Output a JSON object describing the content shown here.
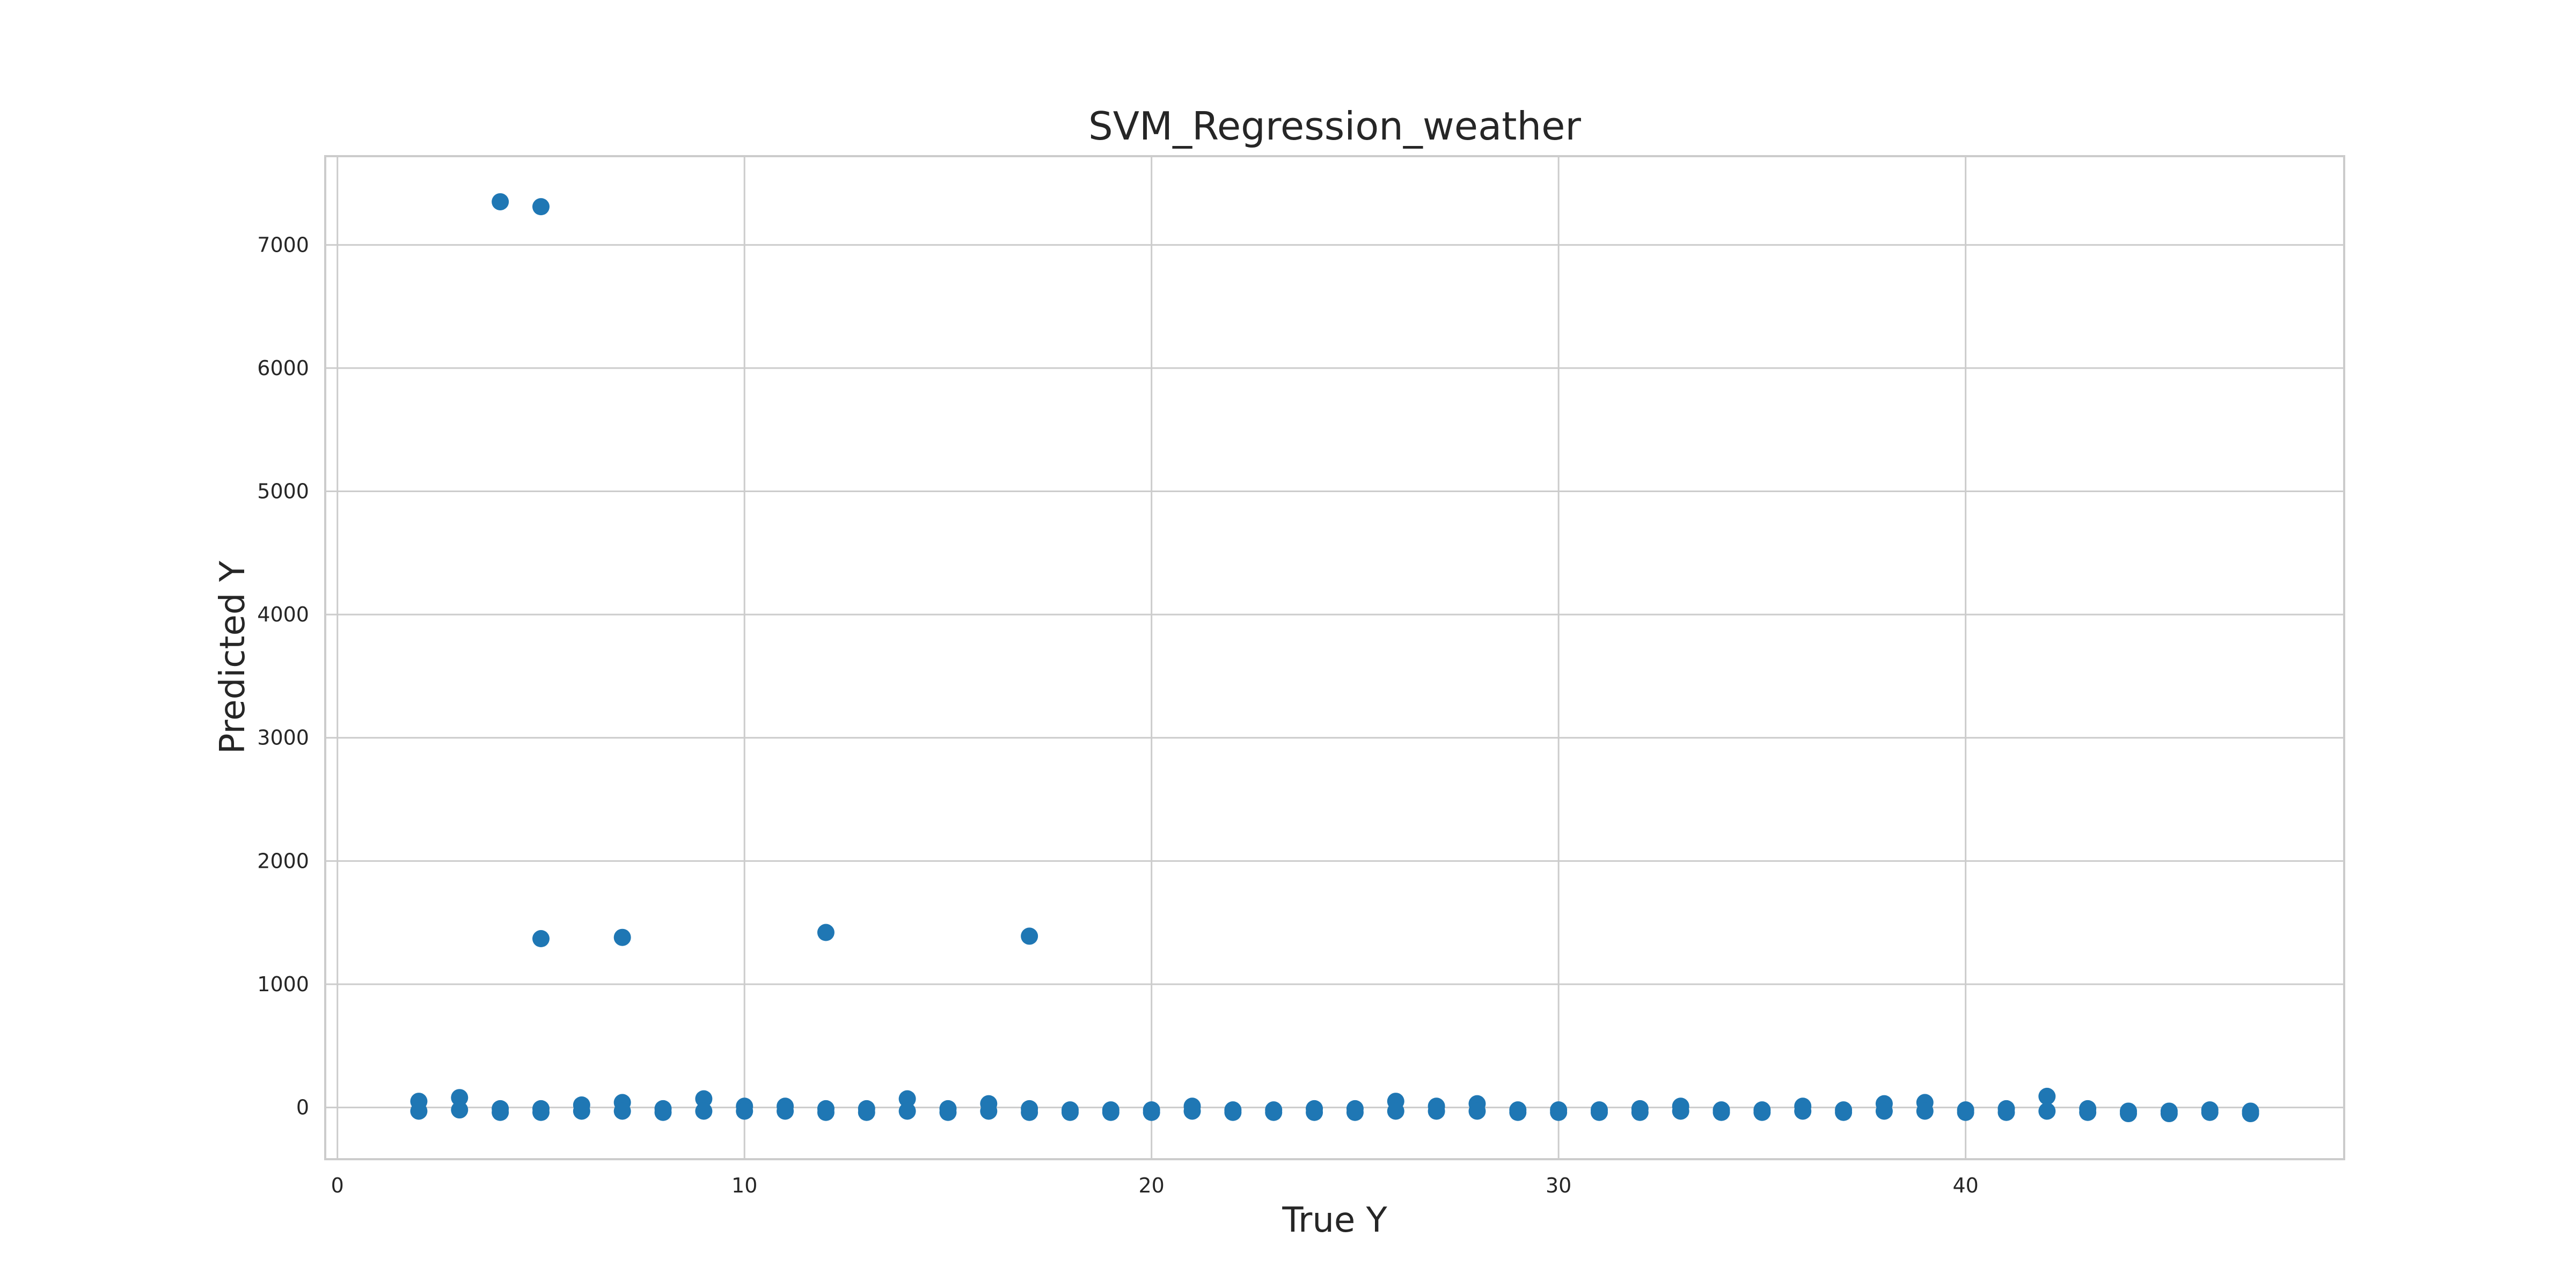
{
  "chart_data": {
    "type": "scatter",
    "title": "SVM_Regression_weather",
    "xlabel": "True Y",
    "ylabel": "Predicted Y",
    "xlim": [
      -0.3,
      49.3
    ],
    "ylim": [
      -420,
      7720
    ],
    "xticks": [
      0,
      10,
      20,
      30,
      40
    ],
    "yticks": [
      0,
      1000,
      2000,
      3000,
      4000,
      5000,
      6000,
      7000
    ],
    "grid": true,
    "legend": "none",
    "marker_color": "#1f77b4",
    "points": [
      {
        "x": 2,
        "y": 50
      },
      {
        "x": 2,
        "y": -30
      },
      {
        "x": 3,
        "y": 80
      },
      {
        "x": 3,
        "y": -20
      },
      {
        "x": 4,
        "y": 7350
      },
      {
        "x": 4,
        "y": -10
      },
      {
        "x": 4,
        "y": -40
      },
      {
        "x": 5,
        "y": 7310
      },
      {
        "x": 5,
        "y": 1370
      },
      {
        "x": 5,
        "y": -10
      },
      {
        "x": 5,
        "y": -40
      },
      {
        "x": 6,
        "y": 20
      },
      {
        "x": 6,
        "y": -30
      },
      {
        "x": 7,
        "y": 1380
      },
      {
        "x": 7,
        "y": 40
      },
      {
        "x": 7,
        "y": -30
      },
      {
        "x": 8,
        "y": -10
      },
      {
        "x": 8,
        "y": -40
      },
      {
        "x": 9,
        "y": 70
      },
      {
        "x": 9,
        "y": -30
      },
      {
        "x": 10,
        "y": 10
      },
      {
        "x": 10,
        "y": -30
      },
      {
        "x": 11,
        "y": 10
      },
      {
        "x": 11,
        "y": -30
      },
      {
        "x": 12,
        "y": 1420
      },
      {
        "x": 12,
        "y": -10
      },
      {
        "x": 12,
        "y": -40
      },
      {
        "x": 13,
        "y": -10
      },
      {
        "x": 13,
        "y": -40
      },
      {
        "x": 14,
        "y": 70
      },
      {
        "x": 14,
        "y": -30
      },
      {
        "x": 15,
        "y": -10
      },
      {
        "x": 15,
        "y": -40
      },
      {
        "x": 16,
        "y": 30
      },
      {
        "x": 16,
        "y": -30
      },
      {
        "x": 17,
        "y": 1390
      },
      {
        "x": 17,
        "y": -10
      },
      {
        "x": 17,
        "y": -40
      },
      {
        "x": 18,
        "y": -20
      },
      {
        "x": 18,
        "y": -40
      },
      {
        "x": 19,
        "y": -20
      },
      {
        "x": 19,
        "y": -40
      },
      {
        "x": 20,
        "y": -20
      },
      {
        "x": 20,
        "y": -40
      },
      {
        "x": 21,
        "y": 10
      },
      {
        "x": 21,
        "y": -30
      },
      {
        "x": 22,
        "y": -20
      },
      {
        "x": 22,
        "y": -40
      },
      {
        "x": 23,
        "y": -20
      },
      {
        "x": 23,
        "y": -40
      },
      {
        "x": 24,
        "y": -10
      },
      {
        "x": 24,
        "y": -40
      },
      {
        "x": 25,
        "y": -10
      },
      {
        "x": 25,
        "y": -40
      },
      {
        "x": 26,
        "y": 50
      },
      {
        "x": 26,
        "y": -30
      },
      {
        "x": 27,
        "y": 10
      },
      {
        "x": 27,
        "y": -30
      },
      {
        "x": 28,
        "y": 30
      },
      {
        "x": 28,
        "y": -30
      },
      {
        "x": 29,
        "y": -20
      },
      {
        "x": 29,
        "y": -40
      },
      {
        "x": 30,
        "y": -20
      },
      {
        "x": 30,
        "y": -40
      },
      {
        "x": 31,
        "y": -20
      },
      {
        "x": 31,
        "y": -40
      },
      {
        "x": 32,
        "y": -10
      },
      {
        "x": 32,
        "y": -40
      },
      {
        "x": 33,
        "y": 10
      },
      {
        "x": 33,
        "y": -30
      },
      {
        "x": 34,
        "y": -20
      },
      {
        "x": 34,
        "y": -40
      },
      {
        "x": 35,
        "y": -20
      },
      {
        "x": 35,
        "y": -40
      },
      {
        "x": 36,
        "y": 10
      },
      {
        "x": 36,
        "y": -30
      },
      {
        "x": 37,
        "y": -20
      },
      {
        "x": 37,
        "y": -40
      },
      {
        "x": 38,
        "y": 30
      },
      {
        "x": 38,
        "y": -30
      },
      {
        "x": 39,
        "y": 40
      },
      {
        "x": 39,
        "y": -30
      },
      {
        "x": 40,
        "y": -20
      },
      {
        "x": 40,
        "y": -40
      },
      {
        "x": 41,
        "y": -10
      },
      {
        "x": 41,
        "y": -40
      },
      {
        "x": 42,
        "y": 90
      },
      {
        "x": 42,
        "y": -30
      },
      {
        "x": 43,
        "y": -10
      },
      {
        "x": 43,
        "y": -40
      },
      {
        "x": 44,
        "y": -30
      },
      {
        "x": 44,
        "y": -50
      },
      {
        "x": 45,
        "y": -30
      },
      {
        "x": 45,
        "y": -50
      },
      {
        "x": 46,
        "y": -20
      },
      {
        "x": 46,
        "y": -40
      },
      {
        "x": 47,
        "y": -30
      },
      {
        "x": 47,
        "y": -50
      }
    ]
  }
}
